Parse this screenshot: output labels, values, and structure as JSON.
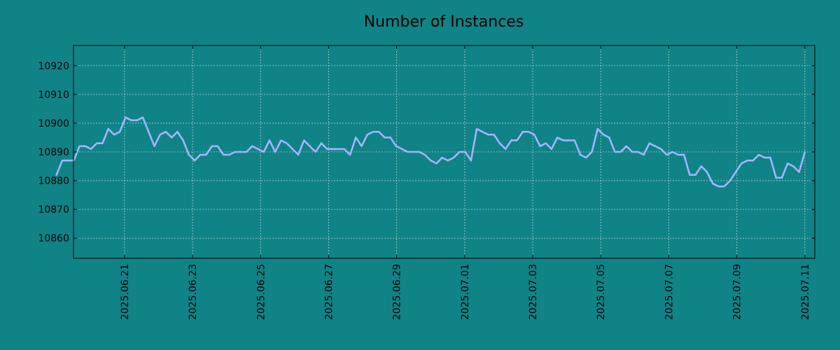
{
  "chart_data": {
    "type": "line",
    "title": "Number of Instances",
    "xlabel": "",
    "ylabel": "",
    "x_start": "2025-06-19",
    "x_end": "2025-07-11",
    "xlim": [
      "2025-06-19T12:00",
      "2025-07-11T07:00"
    ],
    "ylim": [
      10853,
      10927
    ],
    "yticks": [
      10860,
      10870,
      10880,
      10890,
      10900,
      10910,
      10920
    ],
    "xticks": [
      "2025.06.21",
      "2025.06.23",
      "2025.06.25",
      "2025.06.27",
      "2025.06.29",
      "2025.07.01",
      "2025.07.03",
      "2025.07.05",
      "2025.07.07",
      "2025.07.09",
      "2025.07.11"
    ],
    "xtick_dates": [
      "2025-06-21",
      "2025-06-23",
      "2025-06-25",
      "2025-06-27",
      "2025-06-29",
      "2025-07-01",
      "2025-07-03",
      "2025-07-05",
      "2025-07-07",
      "2025-07-09",
      "2025-07-11"
    ],
    "grid": true,
    "series": [
      {
        "color": "#a3b4ff",
        "values": [
          10882,
          10887,
          10887,
          10887,
          10892,
          10892,
          10891,
          10893,
          10893,
          10898,
          10896,
          10897,
          10902,
          10901,
          10901,
          10902,
          10897,
          10892,
          10896,
          10897,
          10895,
          10897,
          10894,
          10889,
          10887,
          10889,
          10889,
          10892,
          10892,
          10889,
          10889,
          10890,
          10890,
          10890,
          10892,
          10891,
          10890,
          10894,
          10890,
          10894,
          10893,
          10891,
          10889,
          10894,
          10892,
          10890,
          10893,
          10891,
          10891,
          10891,
          10891,
          10889,
          10895,
          10892,
          10896,
          10897,
          10897,
          10895,
          10895,
          10892,
          10891,
          10890,
          10890,
          10890,
          10889,
          10887,
          10886,
          10888,
          10887,
          10888,
          10890,
          10890,
          10887,
          10898,
          10897,
          10896,
          10896,
          10893,
          10891,
          10894,
          10894,
          10897,
          10897,
          10896,
          10892,
          10893,
          10891,
          10895,
          10894,
          10894,
          10894,
          10889,
          10888,
          10890,
          10898,
          10896,
          10895,
          10890,
          10890,
          10892,
          10890,
          10890,
          10889,
          10893,
          10892,
          10891,
          10889,
          10890,
          10889,
          10889,
          10882,
          10882,
          10885,
          10883,
          10879,
          10878,
          10878,
          10880,
          10883,
          10886,
          10887,
          10887,
          10889,
          10888,
          10888,
          10881,
          10881,
          10886,
          10885,
          10883,
          10890
        ]
      }
    ]
  }
}
